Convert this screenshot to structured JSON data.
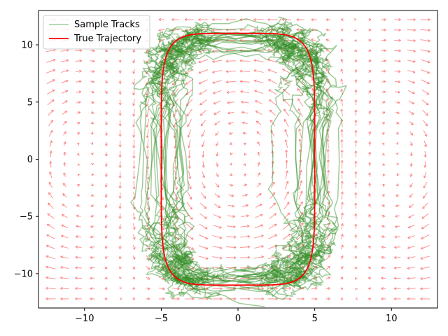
{
  "chart_data": {
    "type": "line",
    "title": "",
    "xlabel": "",
    "ylabel": "",
    "xlim": [
      -13,
      13
    ],
    "ylim": [
      -13,
      13
    ],
    "xticks": [
      -10,
      -5,
      0,
      5,
      10
    ],
    "yticks": [
      -10,
      -5,
      0,
      5,
      10
    ],
    "grid": false,
    "legend_position": "top-left",
    "colors": {
      "sample": "#2e8b22",
      "true": "#ff0000",
      "field": "#ff6f6f"
    },
    "series": [
      {
        "name": "Sample Tracks",
        "style": "line",
        "count": 20,
        "x": [
          0,
          2.5,
          4.0,
          4.7,
          5.0,
          5.0,
          5.0,
          4.7,
          4.0,
          2.5,
          0,
          -2.5,
          -4.0,
          -4.7,
          -5.0,
          -5.0,
          -5.0,
          -4.7,
          -4.0,
          -2.5,
          0
        ],
        "y": [
          -11,
          -10.4,
          -9.0,
          -7.5,
          -5.0,
          0,
          5.0,
          8.0,
          9.8,
          10.7,
          11,
          10.7,
          9.8,
          8.0,
          5.0,
          0,
          -5.0,
          -7.5,
          -9.0,
          -10.4,
          -11
        ]
      },
      {
        "name": "True Trajectory",
        "style": "line",
        "x": [
          0,
          2.5,
          4.0,
          4.7,
          5.0,
          5.0,
          5.0,
          4.7,
          4.0,
          2.5,
          0,
          -2.5,
          -4.0,
          -4.7,
          -5.0,
          -5.0,
          -5.0,
          -4.7,
          -4.0,
          -2.5,
          0
        ],
        "y": [
          -11,
          -10.4,
          -9.0,
          -7.5,
          -5.0,
          0,
          5.0,
          8.0,
          9.8,
          10.7,
          11,
          10.7,
          9.8,
          8.0,
          5.0,
          0,
          -5.0,
          -7.5,
          -9.0,
          -10.4,
          -11
        ]
      },
      {
        "name": "vector-field",
        "style": "quiver",
        "grid_x": [
          -12.2,
          12.2
        ],
        "grid_y": [
          -12.2,
          12.2
        ],
        "grid_n": 28
      }
    ],
    "legend": {
      "sample_label": "Sample Tracks",
      "true_label": "True Trajectory"
    }
  }
}
